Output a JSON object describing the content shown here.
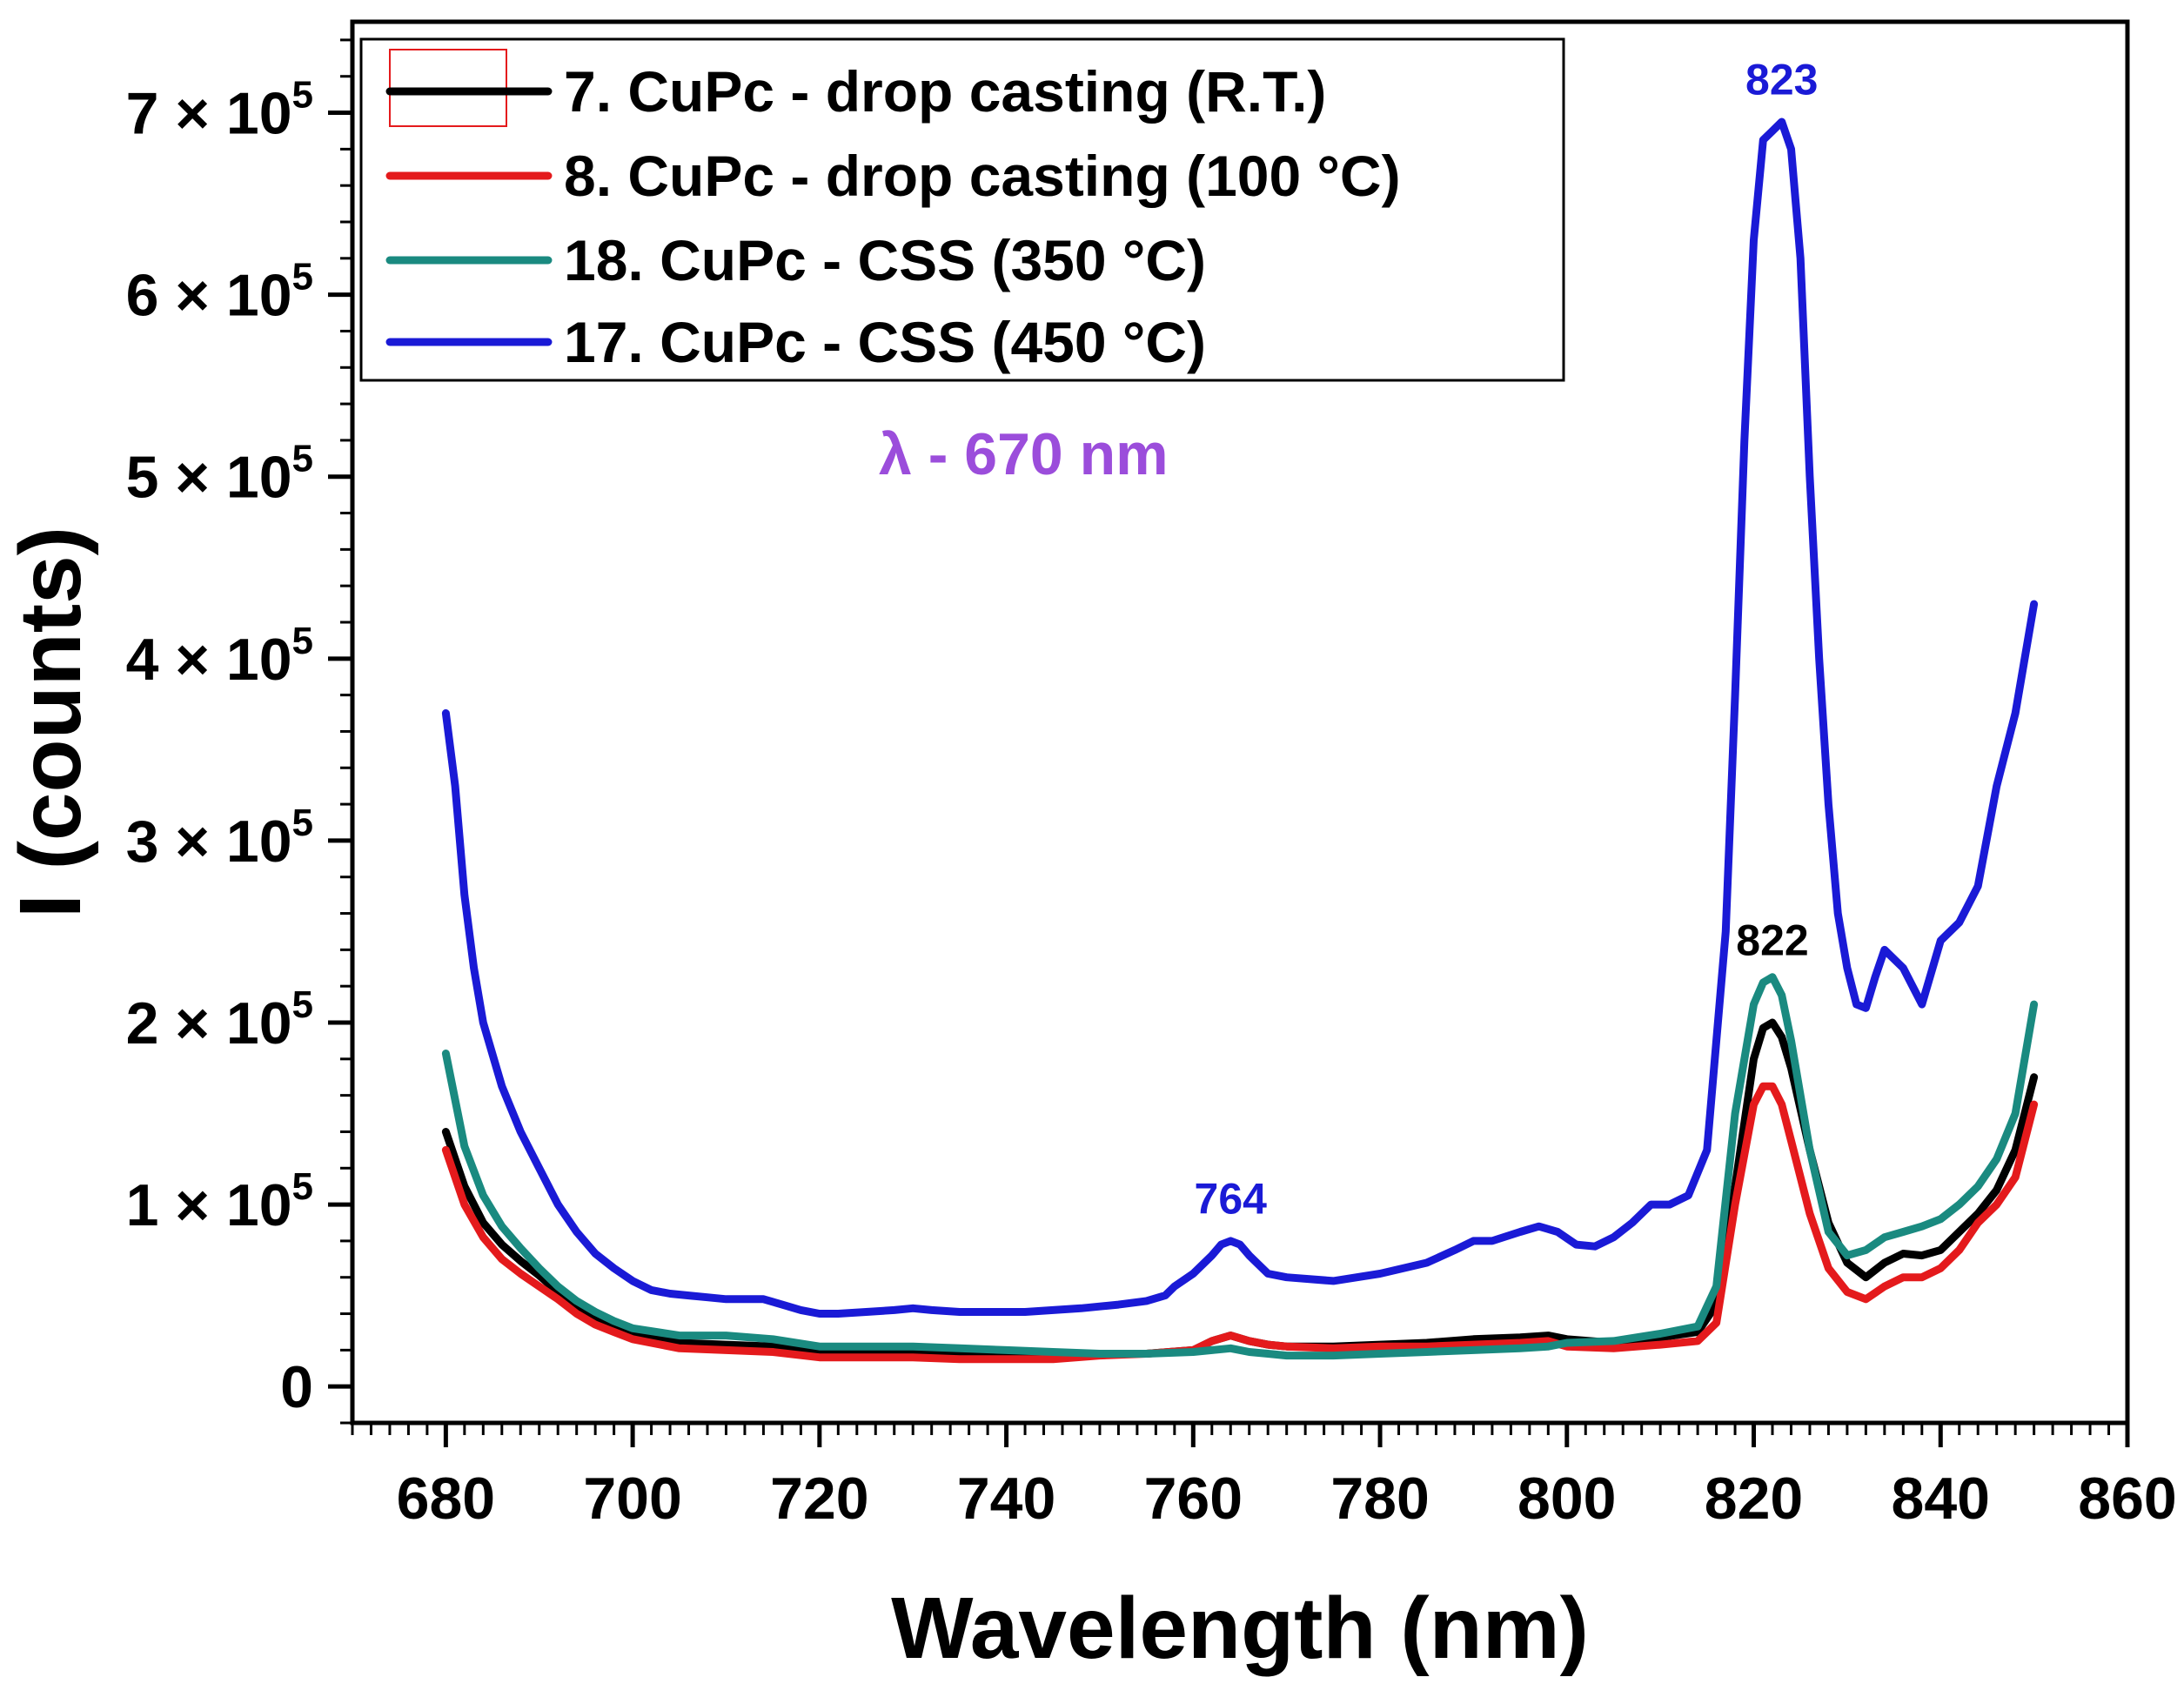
{
  "chart_data": {
    "type": "line",
    "xlabel": "Wavelength (nm)",
    "ylabel": "I (counts)",
    "xlim": [
      670,
      860
    ],
    "ylim": [
      -20000,
      750000
    ],
    "x_ticks": [
      680,
      700,
      720,
      740,
      760,
      780,
      800,
      820,
      840,
      860
    ],
    "y_ticks": [
      {
        "value": 0,
        "mantissa": "0",
        "sep": "",
        "base": "",
        "exp": ""
      },
      {
        "value": 100000,
        "mantissa": "1",
        "sep": " × ",
        "base": "10",
        "exp": "5"
      },
      {
        "value": 200000,
        "mantissa": "2",
        "sep": " × ",
        "base": "10",
        "exp": "5"
      },
      {
        "value": 300000,
        "mantissa": "3",
        "sep": " × ",
        "base": "10",
        "exp": "5"
      },
      {
        "value": 400000,
        "mantissa": "4",
        "sep": " × ",
        "base": "10",
        "exp": "5"
      },
      {
        "value": 500000,
        "mantissa": "5",
        "sep": " × ",
        "base": "10",
        "exp": "5"
      },
      {
        "value": 600000,
        "mantissa": "6",
        "sep": " × ",
        "base": "10",
        "exp": "5"
      },
      {
        "value": 700000,
        "mantissa": "7",
        "sep": " × ",
        "base": "10",
        "exp": "5"
      }
    ],
    "series": [
      {
        "name": "7. CuPc - drop casting (R.T.)",
        "color": "#000000",
        "x": [
          680,
          682,
          684,
          686,
          688,
          690,
          692,
          694,
          696,
          698,
          700,
          705,
          710,
          715,
          720,
          725,
          730,
          735,
          740,
          745,
          750,
          755,
          760,
          762,
          764,
          766,
          768,
          770,
          775,
          780,
          785,
          790,
          795,
          798,
          800,
          805,
          810,
          814,
          816,
          818,
          820,
          821,
          822,
          823,
          824,
          826,
          828,
          830,
          832,
          834,
          836,
          838,
          840,
          842,
          844,
          846,
          848,
          850
        ],
        "y": [
          140000,
          110000,
          90000,
          78000,
          69000,
          61000,
          52000,
          44000,
          38000,
          33000,
          29000,
          24000,
          23000,
          22000,
          19000,
          19000,
          19000,
          19000,
          18000,
          18000,
          18000,
          18000,
          20000,
          25000,
          28000,
          25000,
          23000,
          22000,
          22000,
          23000,
          24000,
          26000,
          27000,
          28000,
          26000,
          24000,
          27000,
          30000,
          45000,
          110000,
          180000,
          197000,
          200000,
          192000,
          175000,
          130000,
          90000,
          68000,
          60000,
          68000,
          73000,
          72000,
          75000,
          85000,
          95000,
          108000,
          130000,
          170000
        ]
      },
      {
        "name": "8. CuPc - drop casting (100 °C)",
        "color": "#e41a1c",
        "x": [
          680,
          682,
          684,
          686,
          688,
          690,
          692,
          694,
          696,
          698,
          700,
          705,
          710,
          715,
          720,
          725,
          730,
          735,
          740,
          745,
          750,
          755,
          760,
          762,
          764,
          766,
          768,
          770,
          775,
          780,
          785,
          790,
          795,
          798,
          800,
          805,
          810,
          814,
          816,
          818,
          820,
          821,
          822,
          823,
          824,
          826,
          828,
          830,
          832,
          834,
          836,
          838,
          840,
          842,
          844,
          846,
          848,
          850
        ],
        "y": [
          130000,
          100000,
          82000,
          70000,
          62000,
          55000,
          48000,
          40000,
          34000,
          30000,
          26000,
          21000,
          20000,
          19000,
          16000,
          16000,
          16000,
          15000,
          15000,
          15000,
          17000,
          18000,
          20000,
          25000,
          28000,
          25000,
          23000,
          22000,
          21000,
          22000,
          22000,
          23000,
          24000,
          25000,
          22000,
          21000,
          23000,
          25000,
          35000,
          100000,
          155000,
          165000,
          165000,
          155000,
          135000,
          95000,
          65000,
          52000,
          48000,
          55000,
          60000,
          60000,
          65000,
          75000,
          90000,
          100000,
          115000,
          155000
        ]
      },
      {
        "name": "18. CuPc - CSS (350 °C)",
        "color": "#1a8a80",
        "x": [
          680,
          682,
          684,
          686,
          688,
          690,
          692,
          694,
          696,
          698,
          700,
          705,
          710,
          715,
          720,
          725,
          730,
          735,
          740,
          745,
          750,
          755,
          760,
          762,
          764,
          766,
          768,
          770,
          775,
          780,
          785,
          790,
          795,
          798,
          800,
          805,
          810,
          814,
          816,
          818,
          820,
          821,
          822,
          823,
          824,
          826,
          828,
          830,
          832,
          834,
          836,
          838,
          840,
          842,
          844,
          846,
          848,
          850
        ],
        "y": [
          183000,
          132000,
          105000,
          88000,
          76000,
          65000,
          55000,
          47000,
          41000,
          36000,
          32000,
          28000,
          28000,
          26000,
          22000,
          22000,
          22000,
          21000,
          20000,
          19000,
          18000,
          18000,
          19000,
          20000,
          21000,
          19000,
          18000,
          17000,
          17000,
          18000,
          19000,
          20000,
          21000,
          22000,
          24000,
          25000,
          29000,
          33000,
          55000,
          150000,
          210000,
          222000,
          225000,
          215000,
          190000,
          130000,
          85000,
          72000,
          75000,
          82000,
          85000,
          88000,
          92000,
          100000,
          110000,
          125000,
          150000,
          210000
        ]
      },
      {
        "name": "17. CuPc - CSS (450 °C)",
        "color": "#1a1ad6",
        "x": [
          680,
          681,
          682,
          683,
          684,
          686,
          688,
          690,
          692,
          694,
          696,
          698,
          700,
          702,
          704,
          706,
          708,
          710,
          712,
          714,
          716,
          718,
          720,
          722,
          725,
          728,
          730,
          732,
          735,
          738,
          740,
          742,
          745,
          748,
          750,
          752,
          755,
          757,
          758,
          760,
          762,
          763,
          764,
          765,
          766,
          768,
          770,
          775,
          780,
          785,
          788,
          790,
          792,
          795,
          797,
          799,
          801,
          803,
          805,
          807,
          809,
          811,
          813,
          815,
          817,
          818,
          819,
          820,
          821,
          822,
          823,
          824,
          825,
          826,
          827,
          828,
          829,
          830,
          831,
          832,
          833,
          834,
          836,
          838,
          840,
          842,
          843,
          844,
          846,
          848,
          850
        ],
        "y": [
          370000,
          330000,
          270000,
          230000,
          200000,
          165000,
          140000,
          120000,
          100000,
          85000,
          73000,
          65000,
          58000,
          53000,
          51000,
          50000,
          49000,
          48000,
          48000,
          48000,
          45000,
          42000,
          40000,
          40000,
          41000,
          42000,
          43000,
          42000,
          41000,
          41000,
          41000,
          41000,
          42000,
          43000,
          44000,
          45000,
          47000,
          50000,
          55000,
          62000,
          72000,
          78000,
          80000,
          78000,
          72000,
          62000,
          60000,
          58000,
          62000,
          68000,
          75000,
          80000,
          80000,
          85000,
          88000,
          85000,
          78000,
          77000,
          82000,
          90000,
          100000,
          100000,
          105000,
          130000,
          250000,
          380000,
          520000,
          630000,
          685000,
          690000,
          695000,
          680000,
          620000,
          500000,
          400000,
          320000,
          260000,
          230000,
          210000,
          208000,
          225000,
          240000,
          230000,
          210000,
          245000,
          255000,
          265000,
          275000,
          330000,
          370000,
          430000
        ]
      }
    ],
    "legend": {
      "position": "top-left",
      "entries": [
        "7. CuPc - drop casting (R.T.)",
        "8. CuPc - drop casting (100 °C)",
        "18. CuPc - CSS (350 °C)",
        "17. CuPc - CSS (450 °C)"
      ]
    },
    "annotations": [
      {
        "text": "823",
        "x": 823,
        "y": 710000,
        "color": "#1a1ad6"
      },
      {
        "text": "822",
        "x": 822,
        "y": 237000,
        "color": "#000000"
      },
      {
        "text": "764",
        "x": 764,
        "y": 95000,
        "color": "#1a1ad6"
      }
    ],
    "excitation_label": "λ - 670 nm",
    "excitation_color": "#9b4ddb"
  }
}
